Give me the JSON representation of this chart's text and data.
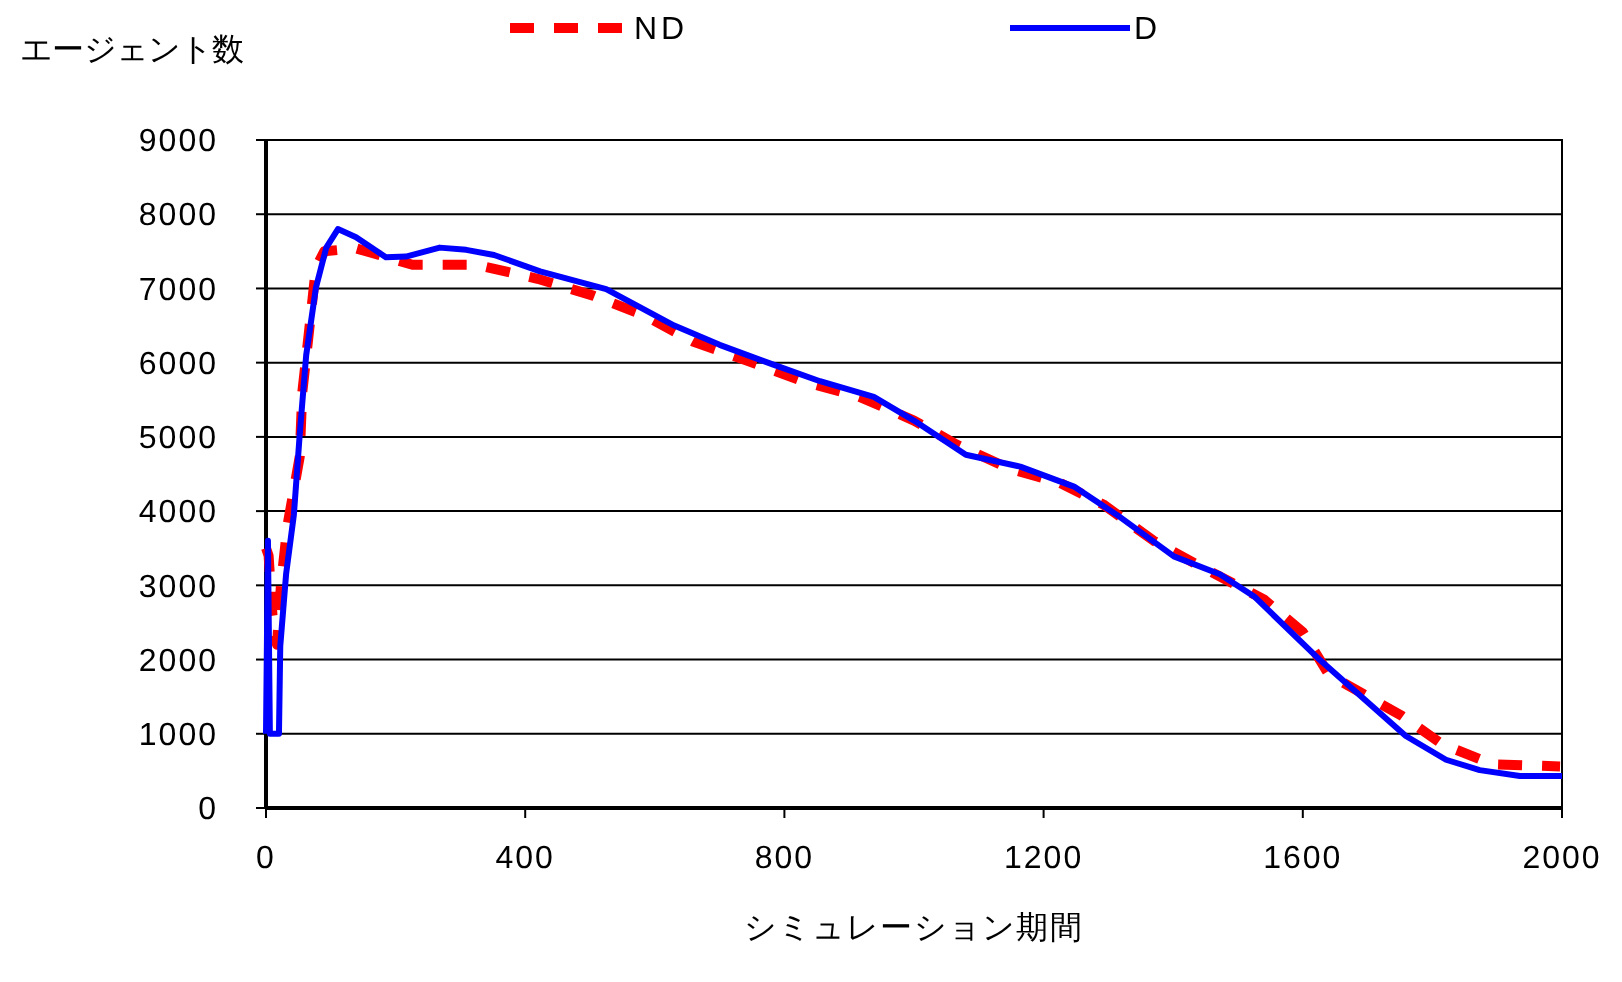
{
  "chart_data": {
    "type": "line",
    "xlabel": "シミュレーション期間",
    "ylabel": "エージェント数",
    "xlim": [
      0,
      2000
    ],
    "ylim": [
      0,
      9000
    ],
    "xticks": [
      0,
      400,
      800,
      1200,
      1600,
      2000
    ],
    "yticks": [
      0,
      1000,
      2000,
      3000,
      4000,
      5000,
      6000,
      7000,
      8000,
      9000
    ],
    "grid": "y",
    "legend": "top",
    "series": [
      {
        "name": "ND",
        "color": "#ff0000",
        "line_style": "dashed",
        "x": [
          0,
          4,
          10,
          17,
          23,
          33,
          52,
          56,
          67,
          77,
          90,
          139,
          226,
          324,
          419,
          506,
          583,
          660,
          745,
          828,
          916,
          1000,
          1065,
          1148,
          1225,
          1292,
          1370,
          1441,
          1540,
          1600,
          1640,
          1753,
          1815,
          1893,
          1997
        ],
        "values": [
          3500,
          3400,
          2600,
          2200,
          3000,
          3800,
          4730,
          5600,
          6470,
          7280,
          7500,
          7540,
          7320,
          7320,
          7130,
          6900,
          6640,
          6280,
          6020,
          5750,
          5540,
          5220,
          4900,
          4570,
          4380,
          4090,
          3600,
          3260,
          2810,
          2370,
          1800,
          1240,
          860,
          590,
          560
        ]
      },
      {
        "name": "D",
        "color": "#0000ff",
        "line_style": "solid",
        "x": [
          0,
          3,
          6,
          20,
          22,
          31,
          43,
          52,
          62,
          77,
          93,
          111,
          139,
          185,
          216,
          268,
          309,
          352,
          423,
          525,
          630,
          700,
          784,
          855,
          938,
          1000,
          1080,
          1164,
          1247,
          1318,
          1401,
          1472,
          1525,
          1627,
          1759,
          1821,
          1873,
          1935,
          2000
        ],
        "values": [
          1000,
          3600,
          1000,
          1000,
          2180,
          3150,
          3950,
          5030,
          6100,
          7010,
          7550,
          7800,
          7690,
          7420,
          7430,
          7550,
          7520,
          7450,
          7230,
          6990,
          6500,
          6240,
          5970,
          5750,
          5540,
          5220,
          4760,
          4600,
          4330,
          3920,
          3390,
          3150,
          2850,
          1990,
          970,
          650,
          510,
          430,
          430
        ]
      }
    ]
  }
}
